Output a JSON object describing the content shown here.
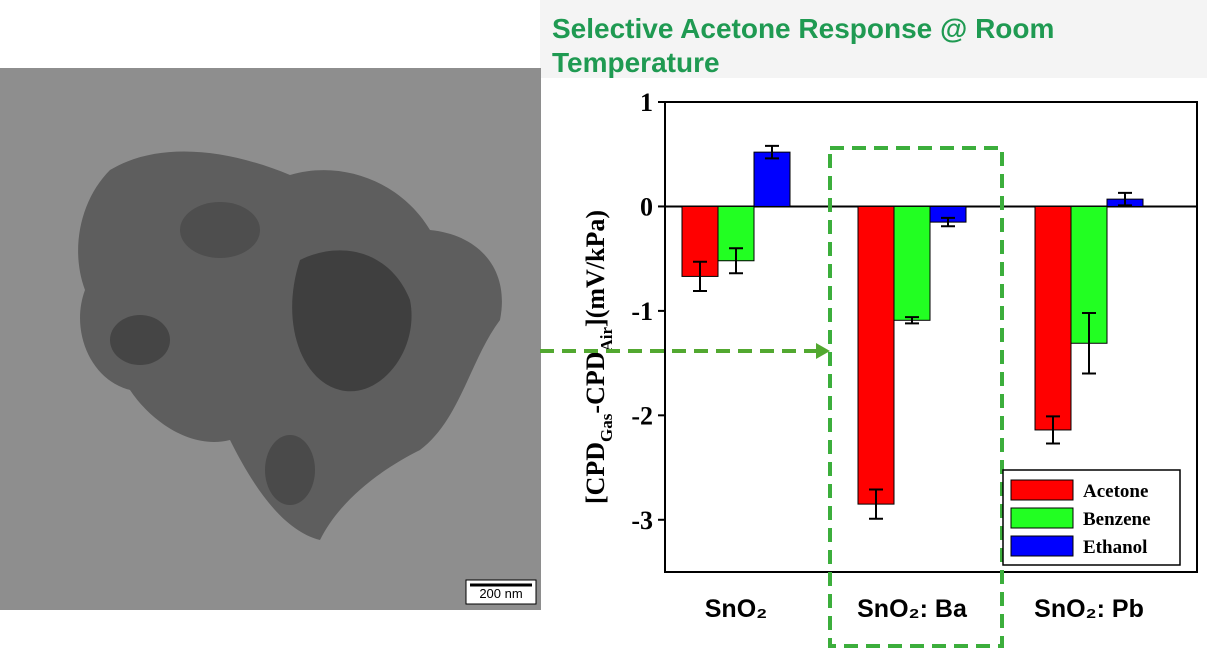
{
  "chart_data": {
    "type": "bar",
    "title": "Selective Acetone Response @ Room Temperature",
    "y_label": [
      "[CPD",
      "Gas",
      "-CPD",
      "Air",
      "](mV/kPa)"
    ],
    "categories": [
      "SnO₂",
      "SnO₂: Ba",
      "SnO₂: Pb"
    ],
    "series": [
      {
        "name": "Acetone",
        "color": "#ff0000",
        "values": [
          -0.67,
          -2.85,
          -2.14
        ],
        "errors": [
          0.14,
          0.14,
          0.13
        ]
      },
      {
        "name": "Benzene",
        "color": "#22ff22",
        "values": [
          -0.52,
          -1.09,
          -1.31
        ],
        "errors": [
          0.12,
          0.03,
          0.29
        ]
      },
      {
        "name": "Ethanol",
        "color": "#0000ff",
        "values": [
          0.52,
          -0.15,
          0.07
        ],
        "errors": [
          0.06,
          0.04,
          0.06
        ]
      }
    ],
    "ylim": [
      -3.5,
      1
    ],
    "yticks": [
      -3,
      -2,
      -1,
      0,
      1
    ],
    "legend": "lower-right",
    "image_scale_bar": "200 nm"
  }
}
